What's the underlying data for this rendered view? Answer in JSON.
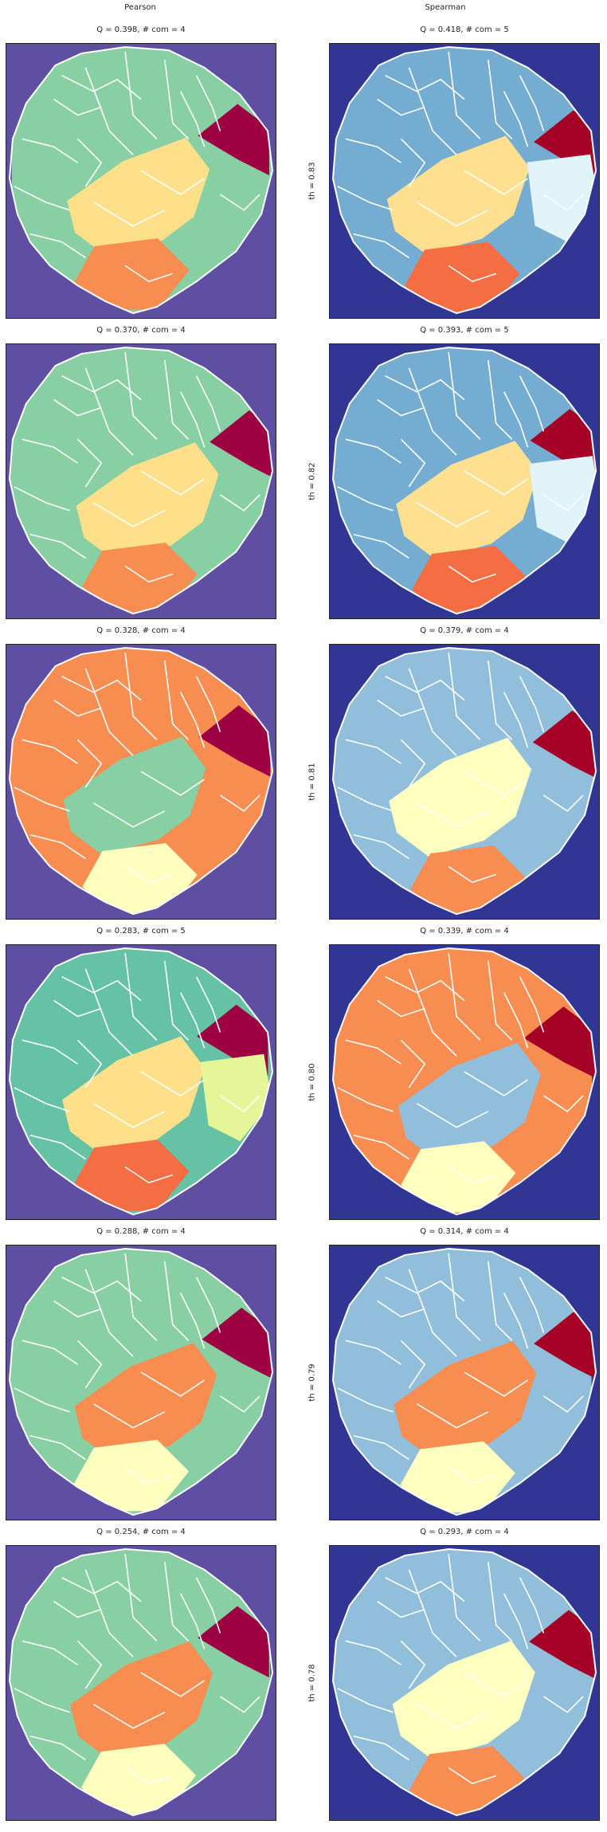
{
  "columns": [
    "Pearson",
    "Spearman"
  ],
  "colors": {
    "pearson_bg": "#5e4fa2",
    "spearman_bg": "#313695",
    "boundary": "#ffffff",
    "frame": "#222222"
  },
  "rows": [
    {
      "th_label": "th = 0.83",
      "pearson": {
        "title": "Q = 0.398,  # com = 4",
        "colors": [
          "#88cfa4",
          "#9e0142",
          "#fee08b",
          "#f88d52"
        ]
      },
      "spearman": {
        "title": "Q = 0.418,  # com = 5",
        "colors": [
          "#74add1",
          "#a50026",
          "#fee090",
          "#f46d43",
          "#e0f3f8"
        ]
      }
    },
    {
      "th_label": "th = 0.82",
      "pearson": {
        "title": "Q = 0.370,  # com = 4",
        "colors": [
          "#88cfa4",
          "#9e0142",
          "#fee08b",
          "#f88d52"
        ]
      },
      "spearman": {
        "title": "Q = 0.393,  # com = 5",
        "colors": [
          "#74add1",
          "#a50026",
          "#fee090",
          "#f46d43",
          "#e0f3f8"
        ]
      }
    },
    {
      "th_label": "th = 0.81",
      "pearson": {
        "title": "Q = 0.328,  # com = 4",
        "colors": [
          "#f88d52",
          "#9e0142",
          "#88cfa4",
          "#feffbe"
        ]
      },
      "spearman": {
        "title": "Q = 0.379,  # com = 4",
        "colors": [
          "#91bfdb",
          "#a50026",
          "#ffffbf",
          "#f88d52"
        ]
      }
    },
    {
      "th_label": "th = 0.80",
      "pearson": {
        "title": "Q = 0.283,  # com = 5",
        "colors": [
          "#66c2a5",
          "#9e0142",
          "#fee08b",
          "#f46d43",
          "#e6f598"
        ]
      },
      "spearman": {
        "title": "Q = 0.339,  # com = 4",
        "colors": [
          "#f88d52",
          "#a50026",
          "#91bfdb",
          "#ffffbf"
        ]
      }
    },
    {
      "th_label": "th = 0.79",
      "pearson": {
        "title": "Q = 0.288,  # com = 4",
        "colors": [
          "#88cfa4",
          "#9e0142",
          "#f88d52",
          "#feffbe"
        ]
      },
      "spearman": {
        "title": "Q = 0.314,  # com = 4",
        "colors": [
          "#91bfdb",
          "#a50026",
          "#f88d52",
          "#ffffbf"
        ]
      }
    },
    {
      "th_label": "th = 0.78",
      "pearson": {
        "title": "Q = 0.254,  # com = 4",
        "colors": [
          "#88cfa4",
          "#9e0142",
          "#f88d52",
          "#feffbe"
        ]
      },
      "spearman": {
        "title": "Q = 0.293,  # com = 4",
        "colors": [
          "#91bfdb",
          "#a50026",
          "#ffffbf",
          "#f88d52"
        ]
      }
    }
  ]
}
